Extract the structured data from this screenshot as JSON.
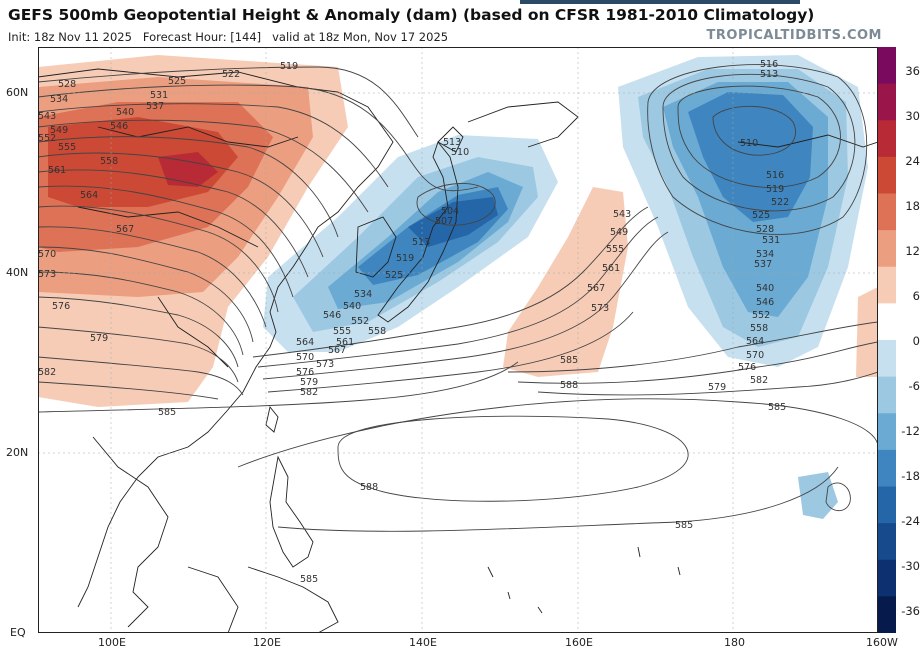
{
  "header": {
    "title": "GEFS 500mb Geopotential Height & Anomaly (dam) (based on CFSR 1981-2010 Climatology)",
    "init_label": "Init: 18z Nov 11 2025",
    "forecast_label": "Forecast Hour: [144]",
    "valid_label": "valid at 18z Mon, Nov 17 2025",
    "watermark": "TROPICALTIDBITS.COM"
  },
  "axes": {
    "lat_labels": [
      "60N",
      "40N",
      "20N",
      "EQ"
    ],
    "lon_labels": [
      "100E",
      "120E",
      "140E",
      "160E",
      "180",
      "160W"
    ]
  },
  "colorbar": {
    "labels": [
      "36",
      "30",
      "24",
      "18",
      "12",
      "6",
      "0",
      "-6",
      "-12",
      "-18",
      "-24",
      "-30",
      "-36"
    ],
    "colors": [
      "#7a0a5e",
      "#99154a",
      "#b82a35",
      "#cc4a35",
      "#de7256",
      "#ec9e80",
      "#f7ccb6",
      "#ffffff",
      "#c7e0ef",
      "#9cc8e2",
      "#6aaad3",
      "#3f86c0",
      "#2566a8",
      "#174a8c",
      "#0d3170",
      "#061b4c"
    ]
  },
  "contour_labels": {
    "west_stack": [
      "528",
      "534",
      "543",
      "549",
      "552",
      "555",
      "558",
      "561",
      "564",
      "567",
      "570",
      "573",
      "576",
      "579",
      "582",
      "585"
    ],
    "north_stack": [
      "519",
      "522",
      "525",
      "531",
      "537",
      "540",
      "546"
    ],
    "trough_stack": [
      "513",
      "510",
      "504",
      "507",
      "513",
      "519",
      "525",
      "534",
      "540",
      "546",
      "552",
      "555",
      "558",
      "561",
      "564",
      "567",
      "570",
      "573",
      "576",
      "579",
      "582"
    ],
    "mid_stack": [
      "543",
      "549",
      "555",
      "561",
      "567",
      "573",
      "585",
      "588"
    ],
    "low_stack": [
      "516",
      "513",
      "510",
      "516",
      "519",
      "522",
      "525",
      "528",
      "531",
      "534",
      "537",
      "540",
      "546",
      "552",
      "558",
      "564",
      "570",
      "576",
      "579",
      "582",
      "585"
    ],
    "subtropical": [
      "588",
      "585",
      "585"
    ]
  }
}
